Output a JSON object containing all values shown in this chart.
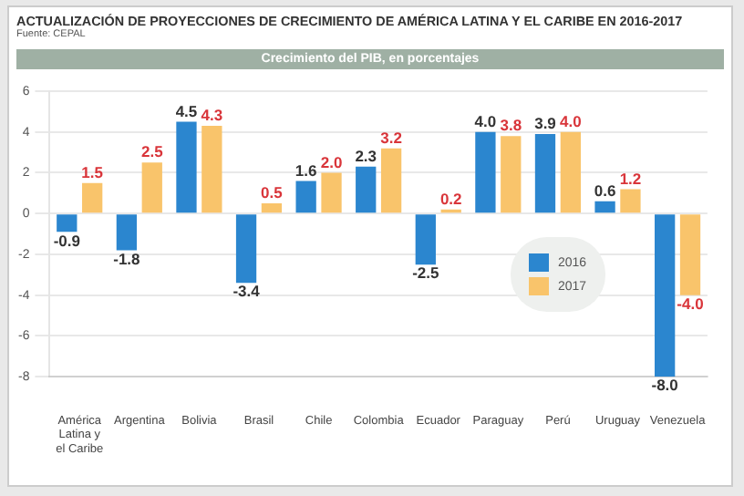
{
  "chart_data": {
    "type": "bar",
    "title": "ACTUALIZACIÓN DE PROYECCIONES DE CRECIMIENTO DE AMÉRICA LATINA Y EL CARIBE EN 2016-2017",
    "subtitle": "Fuente: CEPAL",
    "annotations": [
      "Crecimiento del PIB, en porcentajes"
    ],
    "categories": [
      "América Latina y el Caribe",
      "Argentina",
      "Bolivia",
      "Brasil",
      "Chile",
      "Colombia",
      "Ecuador",
      "Paraguay",
      "Perú",
      "Uruguay",
      "Venezuela"
    ],
    "series": [
      {
        "name": "2016",
        "color": "#2b86cf",
        "values": [
          -0.9,
          -1.8,
          4.5,
          -3.4,
          1.6,
          2.3,
          -2.5,
          4.0,
          3.9,
          0.6,
          -8.0
        ],
        "value_labels": [
          "-0.9",
          "-1.8",
          "4.5",
          "-3.4",
          "1.6",
          "2.3",
          "-2.5",
          "4.0",
          "3.9",
          "0.6",
          "-8.0"
        ]
      },
      {
        "name": "2017",
        "color": "#f9c46b",
        "values": [
          1.5,
          2.5,
          4.3,
          0.5,
          2.0,
          3.2,
          0.2,
          3.8,
          4.0,
          1.2,
          -4.0
        ],
        "value_labels": [
          "1.5",
          "2.5",
          "4.3",
          "0.5",
          "2.0",
          "3.2",
          "0.2",
          "3.8",
          "4.0",
          "1.2",
          "-4.0"
        ]
      }
    ],
    "ylim": [
      -8,
      6
    ],
    "yticks": [
      -8,
      -6,
      -4,
      -2,
      0,
      2,
      4,
      6
    ],
    "grid": "y",
    "legend": "bottom right"
  }
}
